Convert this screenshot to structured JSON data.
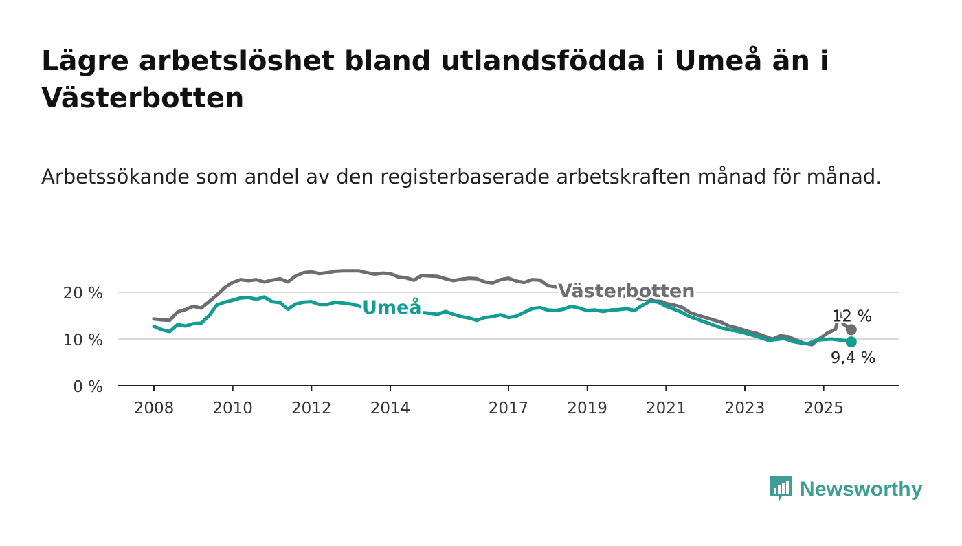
{
  "header": {
    "title": "Lägre arbetslöshet bland utlandsfödda i Umeå än i Västerbotten",
    "subtitle": "Arbetssökande som andel av den registerbaserade arbetskraften månad för månad."
  },
  "brand": {
    "name": "Newsworthy",
    "color": "#3d9e96",
    "icon": "newsworthy-logo-icon"
  },
  "chart_data": {
    "type": "line",
    "title": "Lägre arbetslöshet bland utlandsfödda i Umeå än i Västerbotten",
    "subtitle": "Arbetssökande som andel av den registerbaserade arbetskraften månad för månad.",
    "xlabel": "",
    "ylabel": "",
    "xlim": [
      2008.0,
      2026.0
    ],
    "ylim": [
      0,
      20
    ],
    "y_ticks": [
      0,
      10,
      20
    ],
    "y_tick_labels": [
      "0 %",
      "10 %",
      "20 %"
    ],
    "x_ticks": [
      2008,
      2010,
      2012,
      2014,
      2017,
      2019,
      2021,
      2023,
      2025
    ],
    "x_tick_labels": [
      "2008",
      "2010",
      "2012",
      "2014",
      "2017",
      "2019",
      "2021",
      "2023",
      "2025"
    ],
    "grid": true,
    "series": [
      {
        "name": "Västerbotten",
        "color": "#6e6d72",
        "label": "Västerbotten",
        "end_label": "12 %",
        "points": [
          [
            2008.0,
            14.3
          ],
          [
            2008.2,
            14.1
          ],
          [
            2008.4,
            14.0
          ],
          [
            2008.6,
            15.8
          ],
          [
            2008.8,
            16.3
          ],
          [
            2009.0,
            17.0
          ],
          [
            2009.2,
            16.6
          ],
          [
            2009.4,
            18.0
          ],
          [
            2009.6,
            19.4
          ],
          [
            2009.8,
            21.0
          ],
          [
            2010.0,
            22.1
          ],
          [
            2010.2,
            22.7
          ],
          [
            2010.4,
            22.5
          ],
          [
            2010.6,
            22.7
          ],
          [
            2010.8,
            22.2
          ],
          [
            2011.0,
            22.6
          ],
          [
            2011.2,
            22.9
          ],
          [
            2011.4,
            22.2
          ],
          [
            2011.6,
            23.5
          ],
          [
            2011.8,
            24.2
          ],
          [
            2012.0,
            24.4
          ],
          [
            2012.2,
            24.0
          ],
          [
            2012.4,
            24.2
          ],
          [
            2012.6,
            24.5
          ],
          [
            2012.8,
            24.6
          ],
          [
            2013.0,
            24.6
          ],
          [
            2013.2,
            24.6
          ],
          [
            2013.4,
            24.2
          ],
          [
            2013.6,
            23.9
          ],
          [
            2013.8,
            24.1
          ],
          [
            2014.0,
            24.0
          ],
          [
            2014.2,
            23.3
          ],
          [
            2014.4,
            23.1
          ],
          [
            2014.6,
            22.6
          ],
          [
            2014.8,
            23.6
          ],
          [
            2015.0,
            23.5
          ],
          [
            2015.2,
            23.4
          ],
          [
            2015.4,
            22.9
          ],
          [
            2015.6,
            22.5
          ],
          [
            2015.8,
            22.8
          ],
          [
            2016.0,
            23.0
          ],
          [
            2016.2,
            22.9
          ],
          [
            2016.4,
            22.2
          ],
          [
            2016.6,
            22.0
          ],
          [
            2016.8,
            22.7
          ],
          [
            2017.0,
            23.0
          ],
          [
            2017.2,
            22.4
          ],
          [
            2017.4,
            22.1
          ],
          [
            2017.6,
            22.7
          ],
          [
            2017.8,
            22.6
          ],
          [
            2018.0,
            21.4
          ],
          [
            2020.9,
            18.0
          ],
          [
            2021.0,
            17.6
          ],
          [
            2021.2,
            17.3
          ],
          [
            2021.4,
            16.8
          ],
          [
            2021.6,
            15.7
          ],
          [
            2021.8,
            15.1
          ],
          [
            2022.0,
            14.6
          ],
          [
            2022.2,
            14.1
          ],
          [
            2022.4,
            13.6
          ],
          [
            2022.6,
            12.8
          ],
          [
            2022.8,
            12.4
          ],
          [
            2022.9,
            12.1
          ],
          [
            2023.1,
            11.6
          ],
          [
            2023.3,
            11.2
          ],
          [
            2023.5,
            10.6
          ],
          [
            2023.7,
            10.0
          ],
          [
            2023.9,
            10.7
          ],
          [
            2024.1,
            10.5
          ],
          [
            2024.3,
            9.8
          ],
          [
            2024.5,
            9.1
          ],
          [
            2024.7,
            8.8
          ],
          [
            2024.9,
            10.1
          ],
          [
            2025.1,
            11.3
          ],
          [
            2025.3,
            12.1
          ],
          [
            2025.4,
            15.7
          ],
          [
            2025.5,
            13.2
          ],
          [
            2025.7,
            12.0
          ]
        ]
      },
      {
        "name": "Umeå",
        "color": "#129c92",
        "label": "Umeå",
        "end_label": "9,4 %",
        "points": [
          [
            2008.0,
            12.7
          ],
          [
            2008.2,
            12.0
          ],
          [
            2008.4,
            11.6
          ],
          [
            2008.6,
            13.1
          ],
          [
            2008.8,
            12.8
          ],
          [
            2009.0,
            13.3
          ],
          [
            2009.2,
            13.4
          ],
          [
            2009.4,
            15.0
          ],
          [
            2009.6,
            17.3
          ],
          [
            2009.8,
            17.9
          ],
          [
            2010.0,
            18.3
          ],
          [
            2010.2,
            18.8
          ],
          [
            2010.4,
            18.9
          ],
          [
            2010.6,
            18.5
          ],
          [
            2010.8,
            19.0
          ],
          [
            2011.0,
            18.0
          ],
          [
            2011.2,
            17.8
          ],
          [
            2011.4,
            16.4
          ],
          [
            2011.6,
            17.5
          ],
          [
            2011.8,
            17.9
          ],
          [
            2012.0,
            18.0
          ],
          [
            2012.2,
            17.4
          ],
          [
            2012.4,
            17.4
          ],
          [
            2012.6,
            17.9
          ],
          [
            2012.8,
            17.7
          ],
          [
            2013.0,
            17.5
          ],
          [
            2013.2,
            17.1
          ],
          [
            2013.4,
            16.4
          ],
          [
            2014.9,
            15.6
          ],
          [
            2015.2,
            15.3
          ],
          [
            2015.4,
            15.9
          ],
          [
            2015.6,
            15.3
          ],
          [
            2015.8,
            14.8
          ],
          [
            2016.0,
            14.5
          ],
          [
            2016.2,
            14.0
          ],
          [
            2016.4,
            14.6
          ],
          [
            2016.6,
            14.8
          ],
          [
            2016.8,
            15.2
          ],
          [
            2017.0,
            14.6
          ],
          [
            2017.2,
            14.9
          ],
          [
            2017.4,
            15.7
          ],
          [
            2017.6,
            16.5
          ],
          [
            2017.8,
            16.7
          ],
          [
            2018.0,
            16.2
          ],
          [
            2018.2,
            16.1
          ],
          [
            2018.4,
            16.4
          ],
          [
            2018.6,
            17.0
          ],
          [
            2018.8,
            16.6
          ],
          [
            2019.0,
            16.1
          ],
          [
            2019.2,
            16.2
          ],
          [
            2019.4,
            15.9
          ],
          [
            2019.6,
            16.2
          ],
          [
            2019.8,
            16.3
          ],
          [
            2020.0,
            16.5
          ],
          [
            2020.2,
            16.1
          ],
          [
            2020.4,
            17.2
          ],
          [
            2020.6,
            18.1
          ],
          [
            2020.8,
            17.9
          ],
          [
            2021.0,
            17.0
          ],
          [
            2021.2,
            16.4
          ],
          [
            2021.4,
            15.7
          ],
          [
            2021.6,
            14.8
          ],
          [
            2021.8,
            14.2
          ],
          [
            2022.0,
            13.6
          ],
          [
            2022.2,
            13.0
          ],
          [
            2022.4,
            12.4
          ],
          [
            2022.6,
            12.0
          ],
          [
            2022.8,
            11.7
          ],
          [
            2023.0,
            11.3
          ],
          [
            2023.2,
            10.8
          ],
          [
            2023.4,
            10.3
          ],
          [
            2023.6,
            9.7
          ],
          [
            2023.8,
            9.9
          ],
          [
            2024.0,
            10.1
          ],
          [
            2024.2,
            9.5
          ],
          [
            2024.4,
            9.2
          ],
          [
            2024.6,
            9.0
          ],
          [
            2024.8,
            9.7
          ],
          [
            2025.0,
            9.9
          ],
          [
            2025.2,
            10.0
          ],
          [
            2025.4,
            9.8
          ],
          [
            2025.6,
            9.6
          ],
          [
            2025.7,
            9.4
          ]
        ]
      }
    ]
  }
}
